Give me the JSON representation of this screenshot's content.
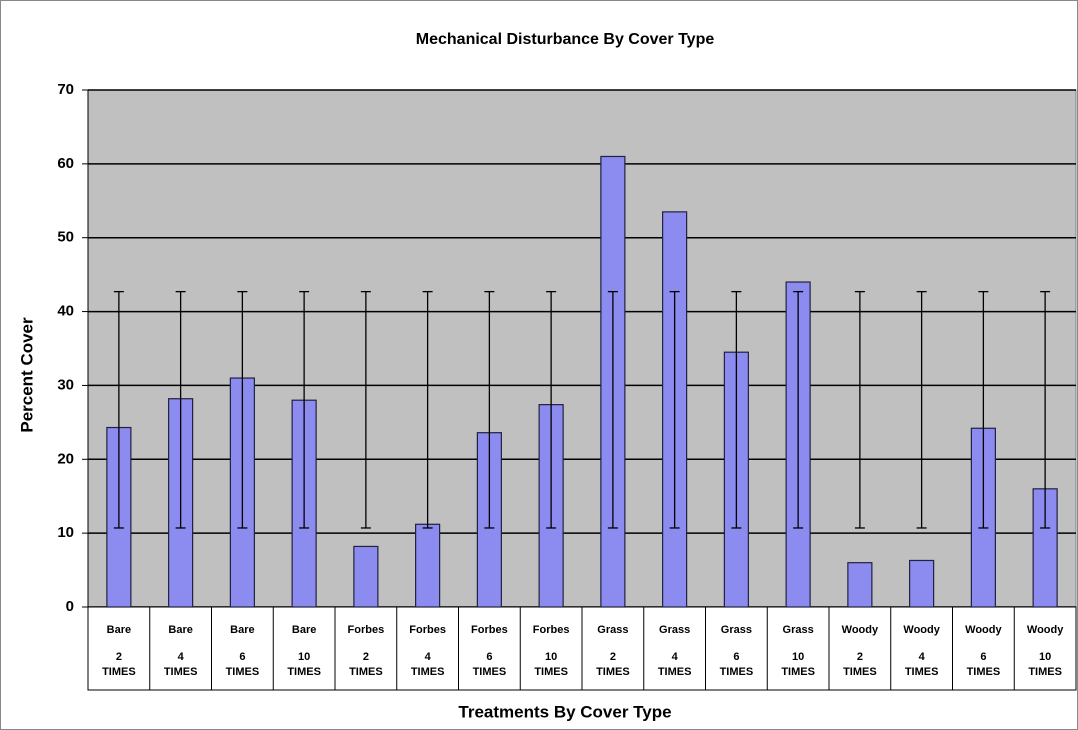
{
  "chart_data": {
    "type": "bar",
    "title": "Mechanical Disturbance By Cover Type",
    "x_label": "Treatments By Cover Type",
    "y_label": "Percent Cover",
    "categories": [
      [
        "Bare",
        "2",
        "TIMES"
      ],
      [
        "Bare",
        "4",
        "TIMES"
      ],
      [
        "Bare",
        "6",
        "TIMES"
      ],
      [
        "Bare",
        "10",
        "TIMES"
      ],
      [
        "Forbes",
        "2",
        "TIMES"
      ],
      [
        "Forbes",
        "4",
        "TIMES"
      ],
      [
        "Forbes",
        "6",
        "TIMES"
      ],
      [
        "Forbes",
        "10",
        "TIMES"
      ],
      [
        "Grass",
        "2",
        "TIMES"
      ],
      [
        "Grass",
        "4",
        "TIMES"
      ],
      [
        "Grass",
        "6",
        "TIMES"
      ],
      [
        "Grass",
        "10",
        "TIMES"
      ],
      [
        "Woody",
        "2",
        "TIMES"
      ],
      [
        "Woody",
        "4",
        "TIMES"
      ],
      [
        "Woody",
        "6",
        "TIMES"
      ],
      [
        "Woody",
        "10",
        "TIMES"
      ]
    ],
    "values": [
      24.3,
      28.2,
      31,
      28,
      8.2,
      11.2,
      23.6,
      27.4,
      61,
      53.5,
      34.5,
      44,
      6,
      6.3,
      24.2,
      16
    ],
    "error_low": [
      10.7,
      10.7,
      10.7,
      10.7,
      10.7,
      10.7,
      10.7,
      10.7,
      10.7,
      10.7,
      10.7,
      10.7,
      10.7,
      10.7,
      10.7,
      10.7
    ],
    "error_high": [
      42.7,
      42.7,
      42.7,
      42.7,
      42.7,
      42.7,
      42.7,
      42.7,
      42.7,
      42.7,
      42.7,
      42.7,
      42.7,
      42.7,
      42.7,
      42.7
    ],
    "color": "#8c8cf0",
    "ylim": [
      0,
      70
    ],
    "yticks": [
      0,
      10,
      20,
      30,
      40,
      50,
      60,
      70
    ],
    "grid": true
  }
}
